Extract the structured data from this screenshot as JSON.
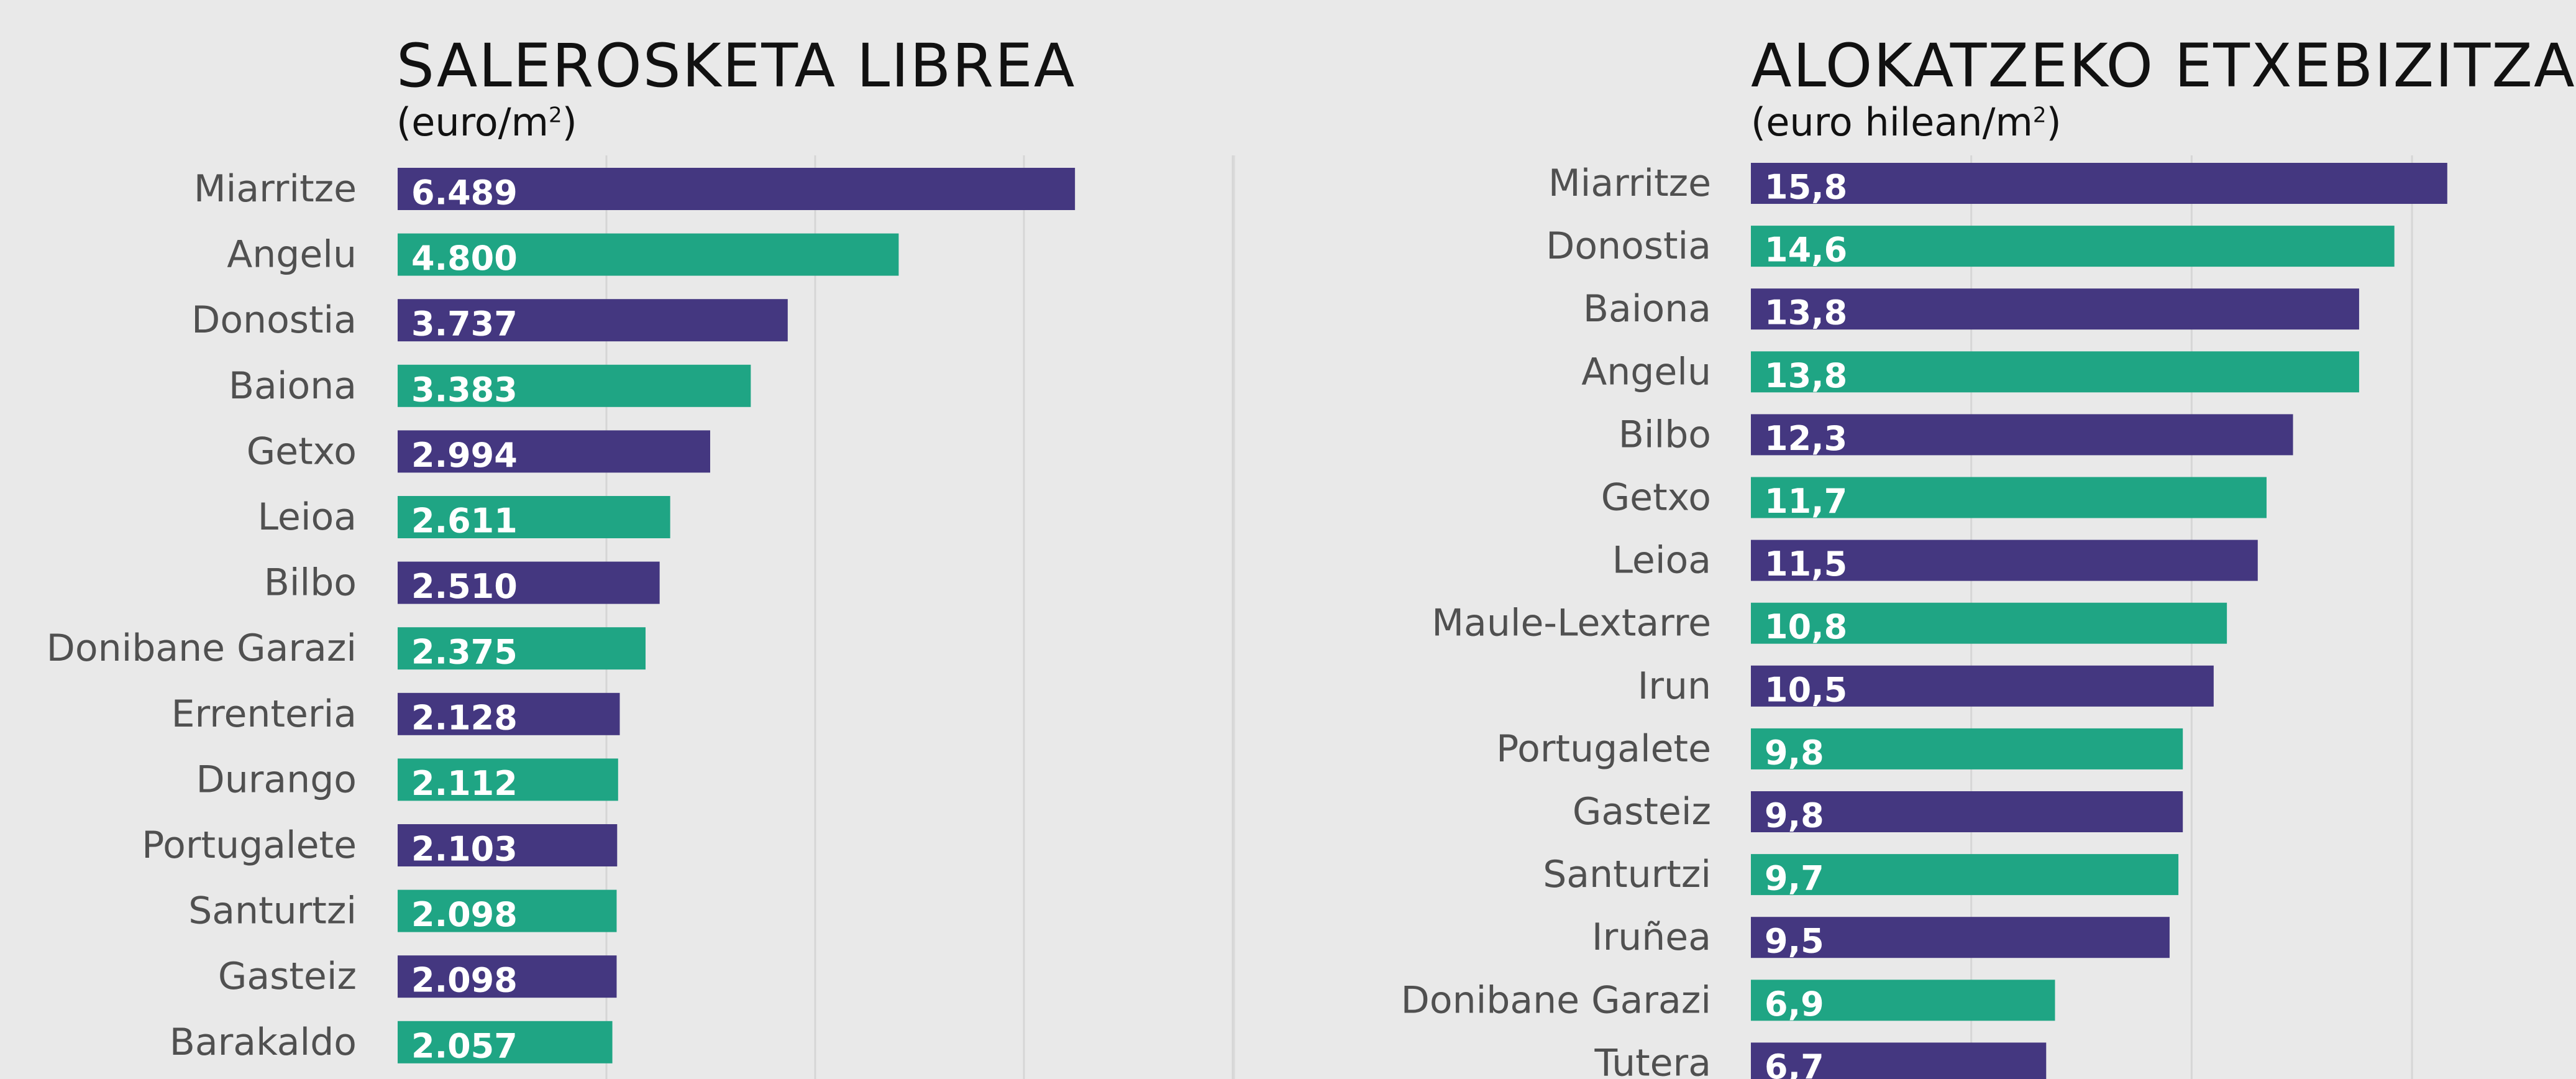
{
  "colors": {
    "background": "#e9e9e9",
    "purple": "#443780",
    "green": "#1fa584",
    "gridline": "#d6d6d6",
    "label": "#505050",
    "value_text": "#ffffff"
  },
  "chart_data": [
    {
      "type": "bar",
      "orientation": "horizontal",
      "title": "SALEROSKETA LIBREA",
      "subtitle_prefix": "(euro/m",
      "subtitle_sup": "2",
      "subtitle_suffix": ")",
      "unit": "euro/m2",
      "xlim": [
        0,
        10000
      ],
      "gridlines": [
        2000,
        4000,
        6000,
        8000
      ],
      "grid": true,
      "categories": [
        "Miarritze",
        "Angelu",
        "Donostia",
        "Baiona",
        "Getxo",
        "Leioa",
        "Bilbo",
        "Donibane Garazi",
        "Errenteria",
        "Durango",
        "Portugalete",
        "Santurtzi",
        "Gasteiz",
        "Barakaldo"
      ],
      "values": [
        6489,
        4800,
        3737,
        3383,
        2994,
        2611,
        2510,
        2375,
        2128,
        2112,
        2103,
        2098,
        2098,
        2057
      ],
      "value_labels": [
        "6.489",
        "4.800",
        "3.737",
        "3.383",
        "2.994",
        "2.611",
        "2.510",
        "2.375",
        "2.128",
        "2.112",
        "2.103",
        "2.098",
        "2.098",
        "2.057"
      ],
      "colors": [
        "#443780",
        "#1fa584",
        "#443780",
        "#1fa584",
        "#443780",
        "#1fa584",
        "#443780",
        "#1fa584",
        "#443780",
        "#1fa584",
        "#443780",
        "#1fa584",
        "#443780",
        "#1fa584"
      ]
    },
    {
      "type": "bar",
      "orientation": "horizontal",
      "title": "ALOKATZEKO ETXEBIZITZA",
      "subtitle_prefix": "(euro hilean/m",
      "subtitle_sup": "2",
      "subtitle_suffix": ")",
      "unit": "euro hilean/m2",
      "xlim": [
        0,
        16
      ],
      "gridlines": [
        5,
        10,
        15
      ],
      "grid": true,
      "categories": [
        "Miarritze",
        "Donostia",
        "Baiona",
        "Angelu",
        "Bilbo",
        "Getxo",
        "Leioa",
        "Maule-Lextarre",
        "Irun",
        "Portugalete",
        "Gasteiz",
        "Santurtzi",
        "Iruñea",
        "Donibane Garazi",
        "Tutera"
      ],
      "values": [
        15.8,
        14.6,
        13.8,
        13.8,
        12.3,
        11.7,
        11.5,
        10.8,
        10.5,
        9.8,
        9.8,
        9.7,
        9.5,
        6.9,
        6.7
      ],
      "value_labels": [
        "15,8",
        "14,6",
        "13,8",
        "13,8",
        "12,3",
        "11,7",
        "11,5",
        "10,8",
        "10,5",
        "9,8",
        "9,8",
        "9,7",
        "9,5",
        "6,9",
        "6,7"
      ],
      "colors": [
        "#443780",
        "#1fa584",
        "#443780",
        "#1fa584",
        "#443780",
        "#1fa584",
        "#443780",
        "#1fa584",
        "#443780",
        "#1fa584",
        "#443780",
        "#1fa584",
        "#443780",
        "#1fa584",
        "#443780"
      ]
    }
  ]
}
